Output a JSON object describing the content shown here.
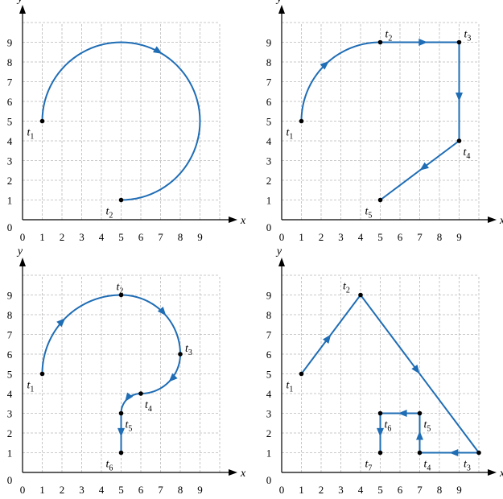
{
  "colors": {
    "path": "#1f6db5",
    "point": "#000000",
    "grid": "#b9b9b9",
    "axis": "#000000"
  },
  "axis_labels": {
    "x": "x",
    "y": "y"
  },
  "ticks": {
    "x": [
      "0",
      "1",
      "2",
      "3",
      "4",
      "5",
      "6",
      "7",
      "8",
      "9"
    ],
    "y": [
      "0",
      "1",
      "2",
      "3",
      "4",
      "5",
      "6",
      "7",
      "8",
      "9"
    ]
  },
  "panels": [
    {
      "points": [
        {
          "name": "t",
          "sub": "1",
          "x": 1,
          "y": 5,
          "pos": "below-left"
        },
        {
          "name": "t",
          "sub": "2",
          "x": 5,
          "y": 1,
          "pos": "below-left"
        }
      ],
      "segments": [
        {
          "kind": "arc",
          "from": [
            1,
            5
          ],
          "center": [
            5,
            5
          ],
          "sweep_deg": 270,
          "arrows_at": [
            0.45
          ]
        }
      ]
    },
    {
      "points": [
        {
          "name": "t",
          "sub": "1",
          "x": 1,
          "y": 5,
          "pos": "below-left"
        },
        {
          "name": "t",
          "sub": "2",
          "x": 5,
          "y": 9,
          "pos": "above-right"
        },
        {
          "name": "t",
          "sub": "3",
          "x": 9,
          "y": 9,
          "pos": "above-right"
        },
        {
          "name": "t",
          "sub": "4",
          "x": 9,
          "y": 4,
          "pos": "below-right"
        },
        {
          "name": "t",
          "sub": "5",
          "x": 5,
          "y": 1,
          "pos": "below-left"
        }
      ],
      "segments": [
        {
          "kind": "arc",
          "from": [
            1,
            5
          ],
          "center": [
            5,
            5
          ],
          "sweep_deg": 90,
          "arrows_at": [
            0.55
          ]
        },
        {
          "kind": "line",
          "from": [
            5,
            9
          ],
          "to": [
            9,
            9
          ],
          "arrows_at": [
            0.6
          ]
        },
        {
          "kind": "line",
          "from": [
            9,
            9
          ],
          "to": [
            9,
            4
          ],
          "arrows_at": [
            0.6
          ]
        },
        {
          "kind": "line",
          "from": [
            9,
            4
          ],
          "to": [
            5,
            1
          ],
          "arrows_at": [
            0.5
          ]
        }
      ]
    },
    {
      "points": [
        {
          "name": "t",
          "sub": "1",
          "x": 1,
          "y": 5,
          "pos": "below-left"
        },
        {
          "name": "t",
          "sub": "2",
          "x": 5,
          "y": 9,
          "pos": "above"
        },
        {
          "name": "t",
          "sub": "3",
          "x": 8,
          "y": 6,
          "pos": "right"
        },
        {
          "name": "t",
          "sub": "4",
          "x": 6,
          "y": 4,
          "pos": "below-right"
        },
        {
          "name": "t",
          "sub": "5",
          "x": 5,
          "y": 3,
          "pos": "below-right"
        },
        {
          "name": "t",
          "sub": "6",
          "x": 5,
          "y": 1,
          "pos": "below-left"
        }
      ],
      "segments": [
        {
          "kind": "arc",
          "from": [
            1,
            5
          ],
          "center": [
            5,
            5
          ],
          "sweep_deg": 90,
          "arrows_at": [
            0.5
          ]
        },
        {
          "kind": "arc",
          "from": [
            5,
            9
          ],
          "center": [
            5,
            6
          ],
          "sweep_deg": 90,
          "arrows_at": [
            0.55
          ]
        },
        {
          "kind": "arc",
          "from": [
            8,
            6
          ],
          "center": [
            6,
            6
          ],
          "sweep_deg": 90,
          "arrows_at": [
            0.5
          ]
        },
        {
          "kind": "arc",
          "from": [
            6,
            4
          ],
          "center": [
            6,
            3
          ],
          "sweep_deg": -90,
          "arrows_at": [
            0.6
          ]
        },
        {
          "kind": "line",
          "from": [
            5,
            3
          ],
          "to": [
            5,
            1
          ],
          "arrows_at": [
            0.6
          ]
        }
      ]
    },
    {
      "points": [
        {
          "name": "t",
          "sub": "1",
          "x": 1,
          "y": 5,
          "pos": "below-left"
        },
        {
          "name": "t",
          "sub": "2",
          "x": 4,
          "y": 9,
          "pos": "above-left"
        },
        {
          "name": "t",
          "sub": "3",
          "x": 10,
          "y": 1,
          "pos": "below-left"
        },
        {
          "name": "t",
          "sub": "4",
          "x": 7,
          "y": 1,
          "pos": "below-right"
        },
        {
          "name": "t",
          "sub": "5",
          "x": 7,
          "y": 3,
          "pos": "below-right"
        },
        {
          "name": "t",
          "sub": "6",
          "x": 5,
          "y": 3,
          "pos": "below-right"
        },
        {
          "name": "t",
          "sub": "7",
          "x": 5,
          "y": 1,
          "pos": "below-left"
        }
      ],
      "segments": [
        {
          "kind": "line",
          "from": [
            1,
            5
          ],
          "to": [
            4,
            9
          ],
          "arrows_at": [
            0.5
          ]
        },
        {
          "kind": "line",
          "from": [
            4,
            9
          ],
          "to": [
            10,
            1
          ],
          "arrows_at": [
            0.5
          ]
        },
        {
          "kind": "line",
          "from": [
            10,
            1
          ],
          "to": [
            7,
            1
          ],
          "arrows_at": [
            0.5
          ]
        },
        {
          "kind": "line",
          "from": [
            7,
            1
          ],
          "to": [
            7,
            3
          ],
          "arrows_at": [
            0.55
          ]
        },
        {
          "kind": "line",
          "from": [
            7,
            3
          ],
          "to": [
            5,
            3
          ],
          "arrows_at": [
            0.55
          ]
        },
        {
          "kind": "line",
          "from": [
            5,
            3
          ],
          "to": [
            5,
            1
          ],
          "arrows_at": [
            0.6
          ]
        }
      ]
    }
  ]
}
